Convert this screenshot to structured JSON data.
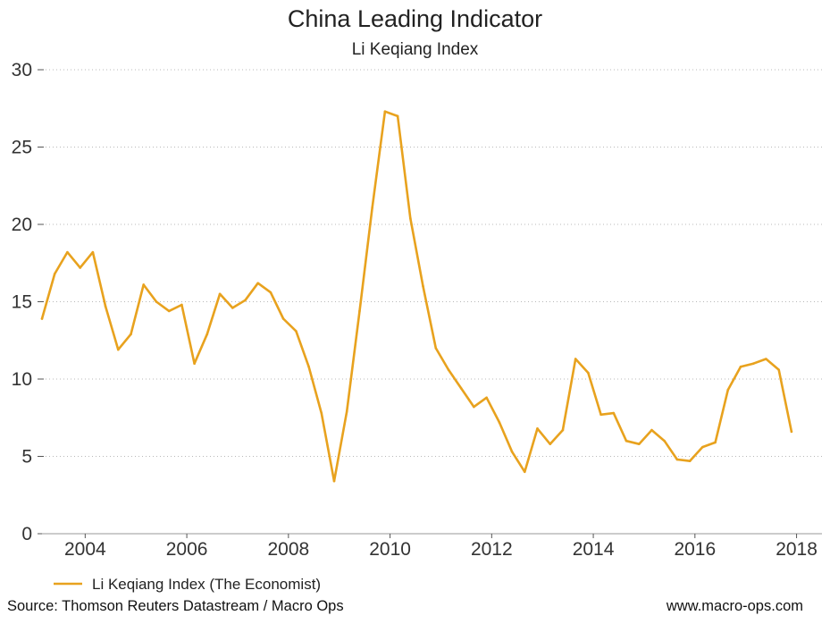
{
  "chart_data": {
    "type": "line",
    "title": "China Leading Indicator",
    "subtitle": "Li Keqiang Index",
    "xlabel": "",
    "ylabel": "",
    "xlim": [
      2003.15,
      2018.5
    ],
    "ylim": [
      0,
      30
    ],
    "yticks": [
      0,
      5,
      10,
      15,
      20,
      25,
      30
    ],
    "xticks": [
      2004,
      2006,
      2008,
      2010,
      2012,
      2014,
      2016,
      2018
    ],
    "grid": true,
    "legend": "bottom-left",
    "series": [
      {
        "name": "Li Keqiang Index (The Economist)",
        "color": "#E8A21E",
        "x": [
          2003.15,
          2003.4,
          2003.65,
          2003.9,
          2004.15,
          2004.4,
          2004.65,
          2004.9,
          2005.15,
          2005.4,
          2005.65,
          2005.9,
          2006.15,
          2006.4,
          2006.65,
          2006.9,
          2007.15,
          2007.4,
          2007.65,
          2007.9,
          2008.15,
          2008.4,
          2008.65,
          2008.9,
          2009.15,
          2009.4,
          2009.65,
          2009.9,
          2010.15,
          2010.4,
          2010.65,
          2010.9,
          2011.15,
          2011.4,
          2011.65,
          2011.9,
          2012.15,
          2012.4,
          2012.65,
          2012.9,
          2013.15,
          2013.4,
          2013.65,
          2013.9,
          2014.15,
          2014.4,
          2014.65,
          2014.9,
          2015.15,
          2015.4,
          2015.65,
          2015.9,
          2016.15,
          2016.4,
          2016.65,
          2016.9,
          2017.15,
          2017.4,
          2017.65,
          2017.9
        ],
        "values": [
          13.9,
          16.8,
          18.2,
          17.2,
          18.2,
          14.7,
          11.9,
          12.9,
          16.1,
          15.0,
          14.4,
          14.8,
          11.0,
          12.9,
          15.5,
          14.6,
          15.1,
          16.2,
          15.6,
          13.9,
          13.1,
          10.8,
          7.8,
          3.4,
          7.9,
          14.4,
          21.1,
          27.3,
          27.0,
          20.4,
          16.0,
          12.0,
          10.6,
          9.4,
          8.2,
          8.8,
          7.2,
          5.3,
          4.0,
          6.8,
          5.8,
          6.7,
          11.3,
          10.4,
          7.7,
          7.8,
          6.0,
          5.8,
          6.7,
          6.0,
          4.8,
          4.7,
          5.6,
          5.9,
          9.3,
          10.8,
          11.0,
          11.3,
          10.6,
          6.6
        ]
      }
    ]
  },
  "footer": {
    "source": "Source: Thomson Reuters Datastream / Macro Ops",
    "website": "www.macro-ops.com"
  }
}
